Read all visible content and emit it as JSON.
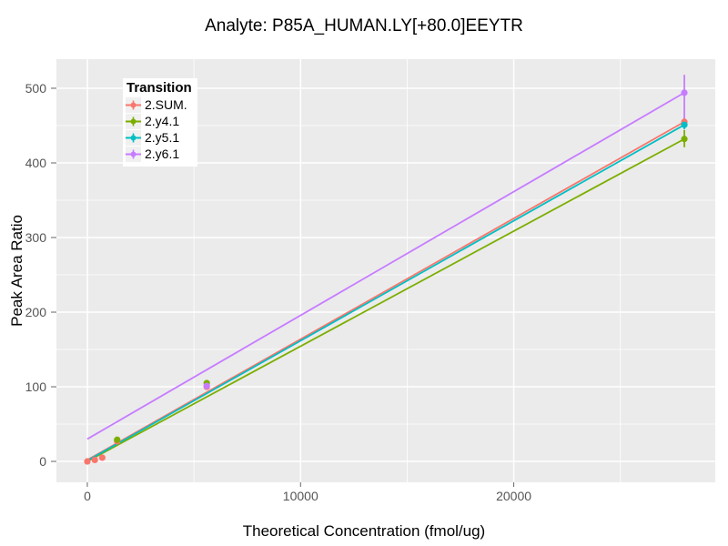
{
  "chart_data": {
    "type": "scatter",
    "title": "Analyte: P85A_HUMAN.LY[+80.0]EEYTR",
    "xlabel": "Theoretical Concentration (fmol/ug)",
    "ylabel": "Peak Area Ratio",
    "legend_title": "Transition",
    "legend_position": "top-left-inside",
    "grid": true,
    "panel_bg": "#EBEBEB",
    "grid_color": "#FFFFFF",
    "tick_color": "#666666",
    "tick_label_color": "#555555",
    "xlim": [
      -1450,
      29450
    ],
    "ylim": [
      -28,
      539
    ],
    "x_ticks": [
      0,
      10000,
      20000
    ],
    "y_ticks": [
      0,
      100,
      200,
      300,
      400,
      500
    ],
    "x_minor_ticks": [
      5000,
      15000,
      25000
    ],
    "y_minor_ticks": [
      50,
      150,
      250,
      350,
      450
    ],
    "series": [
      {
        "name": "2.SUM.",
        "color": "#F8766D",
        "line": {
          "x": [
            0,
            28000
          ],
          "y": [
            2,
            455
          ]
        },
        "points": [
          [
            0,
            0
          ],
          [
            350,
            2
          ],
          [
            700,
            5
          ],
          [
            1400,
            27
          ],
          [
            5600,
            100
          ],
          [
            28000,
            455
          ]
        ],
        "errorbars": [
          {
            "x": 28000,
            "low": 448,
            "high": 462
          }
        ]
      },
      {
        "name": "2.y4.1",
        "color": "#7CAE00",
        "line": {
          "x": [
            0,
            28000
          ],
          "y": [
            0,
            432
          ]
        },
        "points": [
          [
            1400,
            29
          ],
          [
            5600,
            105
          ],
          [
            28000,
            432
          ]
        ],
        "errorbars": [
          {
            "x": 28000,
            "low": 421,
            "high": 444
          }
        ]
      },
      {
        "name": "2.y5.1",
        "color": "#00BFC4",
        "line": {
          "x": [
            0,
            28000
          ],
          "y": [
            1,
            451
          ]
        },
        "points": [
          [
            28000,
            451
          ]
        ],
        "errorbars": [
          {
            "x": 28000,
            "low": 445,
            "high": 456
          }
        ]
      },
      {
        "name": "2.y6.1",
        "color": "#C77CFF",
        "line": {
          "x": [
            0,
            28000
          ],
          "y": [
            30,
            494
          ]
        },
        "points": [
          [
            5600,
            101
          ],
          [
            28000,
            494
          ]
        ],
        "errorbars": [
          {
            "x": 28000,
            "low": 458,
            "high": 518
          }
        ]
      }
    ]
  }
}
